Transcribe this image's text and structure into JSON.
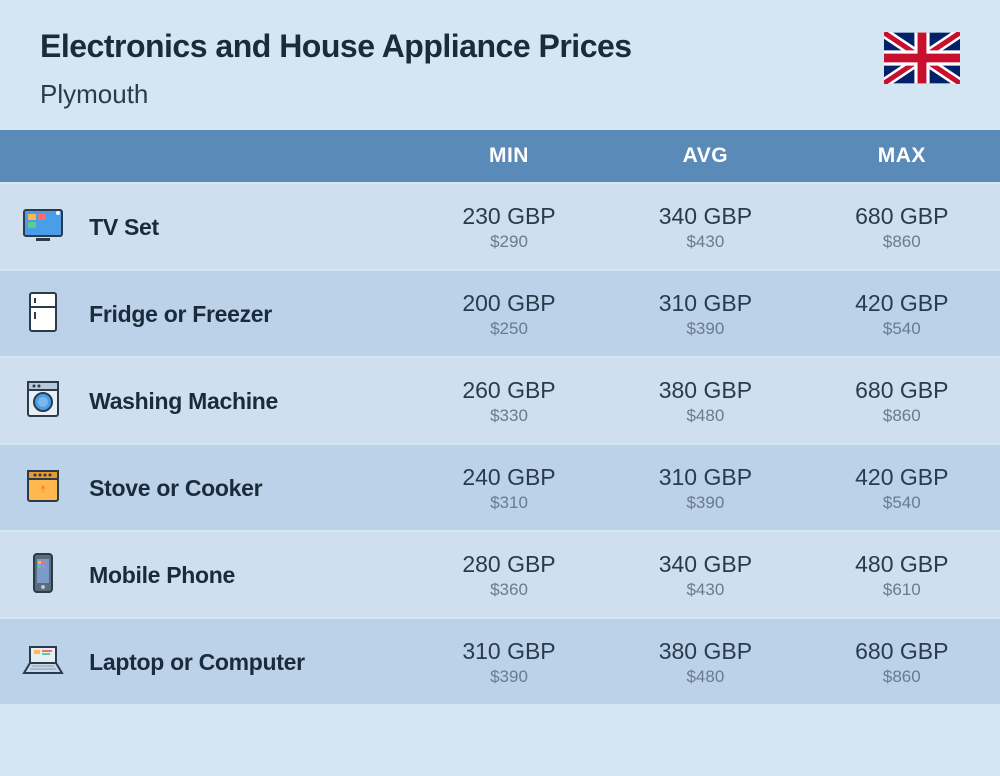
{
  "header": {
    "title": "Electronics and House Appliance Prices",
    "location": "Plymouth"
  },
  "table": {
    "columns": [
      "MIN",
      "AVG",
      "MAX"
    ],
    "header_bg": "#5a8bb8",
    "header_fg": "#ffffff",
    "row_odd_bg": "#cfdff0",
    "row_even_bg": "#bcd2e8",
    "rows": [
      {
        "icon": "tv",
        "name": "TV Set",
        "min_gbp": "230 GBP",
        "min_usd": "$290",
        "avg_gbp": "340 GBP",
        "avg_usd": "$430",
        "max_gbp": "680 GBP",
        "max_usd": "$860"
      },
      {
        "icon": "fridge",
        "name": "Fridge or Freezer",
        "min_gbp": "200 GBP",
        "min_usd": "$250",
        "avg_gbp": "310 GBP",
        "avg_usd": "$390",
        "max_gbp": "420 GBP",
        "max_usd": "$540"
      },
      {
        "icon": "washer",
        "name": "Washing Machine",
        "min_gbp": "260 GBP",
        "min_usd": "$330",
        "avg_gbp": "380 GBP",
        "avg_usd": "$480",
        "max_gbp": "680 GBP",
        "max_usd": "$860"
      },
      {
        "icon": "stove",
        "name": "Stove or Cooker",
        "min_gbp": "240 GBP",
        "min_usd": "$310",
        "avg_gbp": "310 GBP",
        "avg_usd": "$390",
        "max_gbp": "420 GBP",
        "max_usd": "$540"
      },
      {
        "icon": "phone",
        "name": "Mobile Phone",
        "min_gbp": "280 GBP",
        "min_usd": "$360",
        "avg_gbp": "340 GBP",
        "avg_usd": "$430",
        "max_gbp": "480 GBP",
        "max_usd": "$610"
      },
      {
        "icon": "laptop",
        "name": "Laptop or Computer",
        "min_gbp": "310 GBP",
        "min_usd": "$390",
        "avg_gbp": "380 GBP",
        "avg_usd": "$480",
        "max_gbp": "680 GBP",
        "max_usd": "$860"
      }
    ]
  },
  "colors": {
    "page_bg": "#d4e5f3",
    "title_fg": "#1a2b3c",
    "gbp_fg": "#2a3b4c",
    "usd_fg": "#6a7b8c"
  }
}
